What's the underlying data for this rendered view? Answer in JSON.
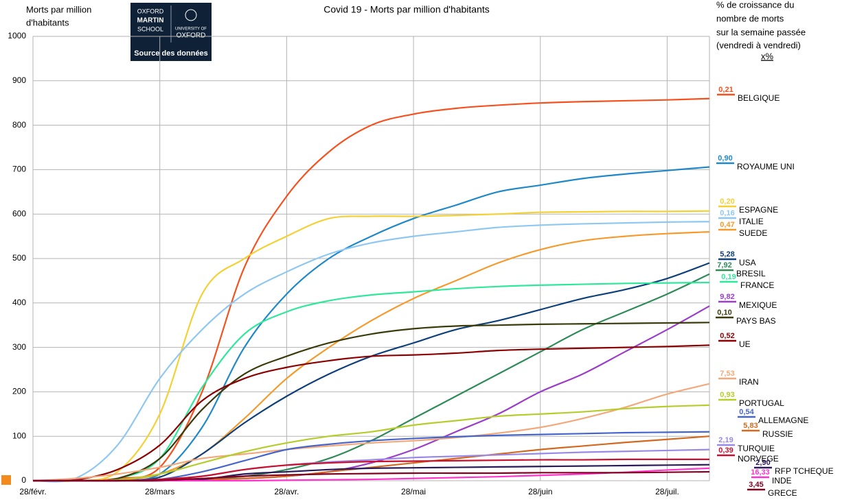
{
  "chart_data": {
    "type": "line",
    "title": "Covid 19 - Morts par million d'habitants",
    "y_label_lines": [
      "Morts par million",
      "d'habitants"
    ],
    "note_lines": [
      "% de croissance du",
      "nombre de morts",
      "sur la semaine passée",
      "(vendredi à vendredi)",
      "x%"
    ],
    "logo": {
      "line1": "OXFORD",
      "line2": "MARTIN",
      "line3": "SCHOOL",
      "univ1": "UNIVERSITY OF",
      "univ2": "OXFORD",
      "caption": "Source des données"
    },
    "categories": [
      "28/févr.",
      null,
      null,
      "28/mars",
      null,
      null,
      "28/avr.",
      null,
      null,
      "28/mai",
      null,
      null,
      "28/juin",
      null,
      null,
      "28/juil.",
      null
    ],
    "ylim": [
      0,
      1000
    ],
    "yticks": [
      0,
      100,
      200,
      300,
      400,
      500,
      600,
      700,
      800,
      900,
      1000
    ],
    "grid": true,
    "series": [
      {
        "name": "BELGIQUE",
        "growth": "0,21",
        "color": "#f4511e",
        "values": [
          0,
          0,
          5,
          30,
          200,
          480,
          640,
          740,
          800,
          825,
          838,
          845,
          850,
          853,
          855,
          857,
          860
        ]
      },
      {
        "name": "ROYAUME UNI",
        "growth": "0,90",
        "color": "#1e88c8",
        "values": [
          0,
          0,
          2,
          15,
          120,
          300,
          420,
          500,
          550,
          590,
          620,
          650,
          665,
          680,
          690,
          698,
          706
        ]
      },
      {
        "name": "ESPAGNE",
        "growth": "0,20",
        "color": "#f5d033",
        "values": [
          0,
          0,
          20,
          150,
          420,
          500,
          550,
          590,
          595,
          595,
          597,
          600,
          604,
          605,
          606,
          606,
          607
        ]
      },
      {
        "name": "ITALIE",
        "growth": "0,16",
        "color": "#8ec8f2",
        "values": [
          0,
          5,
          80,
          230,
          340,
          420,
          470,
          510,
          535,
          550,
          560,
          570,
          575,
          578,
          580,
          582,
          583
        ]
      },
      {
        "name": "SUEDE",
        "growth": "0,47",
        "color": "#f59a2a",
        "values": [
          0,
          0,
          2,
          15,
          60,
          140,
          230,
          300,
          360,
          410,
          450,
          490,
          520,
          540,
          550,
          556,
          560
        ]
      },
      {
        "name": "USA",
        "growth": "5,28",
        "color": "#0d3f7a",
        "values": [
          0,
          0,
          0,
          8,
          60,
          130,
          190,
          240,
          280,
          310,
          340,
          360,
          385,
          410,
          430,
          455,
          490
        ]
      },
      {
        "name": "BRESIL",
        "growth": "7,92",
        "color": "#2e8b57",
        "values": [
          0,
          0,
          0,
          0,
          3,
          10,
          25,
          50,
          90,
          140,
          190,
          240,
          290,
          340,
          380,
          420,
          465
        ]
      },
      {
        "name": "FRANCE",
        "growth": "0,19",
        "color": "#2ee89a",
        "values": [
          0,
          0,
          5,
          50,
          210,
          330,
          380,
          405,
          418,
          425,
          432,
          437,
          440,
          442,
          444,
          445,
          446
        ]
      },
      {
        "name": "MEXIQUE",
        "growth": "9,82",
        "color": "#9b3dc8",
        "values": [
          0,
          0,
          0,
          0,
          2,
          5,
          10,
          20,
          40,
          70,
          110,
          150,
          200,
          240,
          290,
          340,
          393
        ]
      },
      {
        "name": "PAYS BAS",
        "growth": "0,10",
        "color": "#3a3a0a",
        "values": [
          0,
          0,
          5,
          50,
          160,
          240,
          280,
          310,
          330,
          342,
          348,
          350,
          352,
          353,
          354,
          355,
          356
        ]
      },
      {
        "name": "UE",
        "growth": "0,52",
        "color": "#8b0000",
        "values": [
          0,
          2,
          25,
          80,
          180,
          230,
          255,
          270,
          280,
          283,
          287,
          293,
          296,
          298,
          300,
          302,
          305
        ]
      },
      {
        "name": "IRAN",
        "growth": "7,53",
        "color": "#f4a87a",
        "values": [
          0,
          5,
          15,
          30,
          50,
          60,
          70,
          78,
          85,
          90,
          97,
          107,
          120,
          140,
          165,
          195,
          218
        ]
      },
      {
        "name": "PORTUGAL",
        "growth": "0,93",
        "color": "#b5cc2a",
        "values": [
          0,
          0,
          2,
          15,
          40,
          65,
          85,
          100,
          110,
          125,
          135,
          145,
          150,
          155,
          162,
          167,
          170
        ]
      },
      {
        "name": "ALLEMAGNE",
        "growth": "0,54",
        "color": "#4466cc",
        "values": [
          0,
          0,
          0,
          3,
          20,
          45,
          70,
          82,
          90,
          95,
          99,
          102,
          104,
          106,
          108,
          109,
          110
        ]
      },
      {
        "name": "RUSSIE",
        "growth": "5,83",
        "color": "#d2691e",
        "values": [
          0,
          0,
          0,
          0,
          2,
          5,
          10,
          20,
          30,
          40,
          50,
          60,
          70,
          78,
          86,
          93,
          100
        ]
      },
      {
        "name": "TURQUIE",
        "growth": "2,19",
        "color": "#9988e8",
        "values": [
          0,
          0,
          0,
          2,
          10,
          25,
          35,
          42,
          47,
          52,
          55,
          58,
          61,
          64,
          66,
          68,
          70
        ]
      },
      {
        "name": "NORVEGE",
        "growth": "0,39",
        "color": "#c8102e",
        "values": [
          0,
          0,
          0,
          3,
          10,
          25,
          35,
          40,
          43,
          44,
          45,
          46,
          47,
          47,
          48,
          48,
          48
        ]
      },
      {
        "name": "RFP TCHEQUE",
        "growth": "2,90",
        "color": "#2a1a5a",
        "values": [
          0,
          0,
          0,
          0,
          3,
          15,
          20,
          25,
          28,
          29,
          30,
          31,
          32,
          33,
          34,
          35,
          36
        ]
      },
      {
        "name": "INDE",
        "growth": "16,33",
        "color": "#ff33cc",
        "values": [
          0,
          0,
          0,
          0,
          0,
          0,
          1,
          2,
          3,
          5,
          7,
          9,
          12,
          15,
          19,
          24,
          28
        ]
      },
      {
        "name": "GRECE",
        "growth": "3,45",
        "color": "#800020",
        "values": [
          0,
          0,
          0,
          1,
          5,
          10,
          13,
          15,
          16,
          17,
          17,
          17,
          18,
          18,
          18,
          19,
          20
        ]
      }
    ]
  }
}
